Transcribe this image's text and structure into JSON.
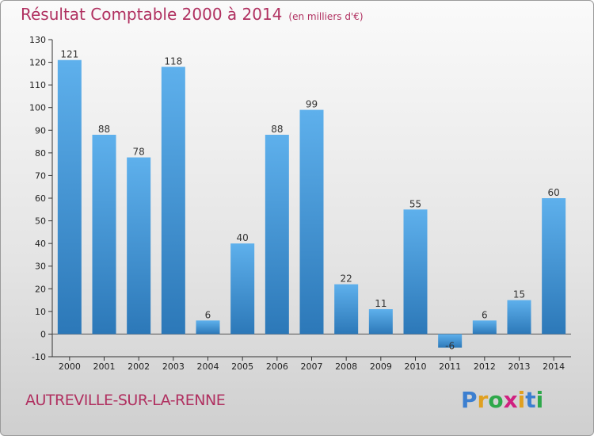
{
  "header": {
    "title": "Résultat Comptable 2000 à 2014",
    "subtitle": "(en milliers d'€)"
  },
  "commune": "AUTREVILLE-SUR-LA-RENNE",
  "logo": {
    "letters": [
      "P",
      "r",
      "o",
      "x",
      "i",
      "t",
      "i"
    ],
    "colors": [
      "#3c7fd0",
      "#e0a020",
      "#2ea84a",
      "#d02080",
      "#e0a020",
      "#3c7fd0",
      "#2ea84a"
    ]
  },
  "chart_data": {
    "type": "bar",
    "title": "Résultat Comptable 2000 à 2014",
    "ylabel": "en milliers d'€",
    "categories": [
      "2000",
      "2001",
      "2002",
      "2003",
      "2004",
      "2005",
      "2006",
      "2007",
      "2008",
      "2009",
      "2010",
      "2011",
      "2012",
      "2013",
      "2014"
    ],
    "values": [
      121,
      88,
      78,
      118,
      6,
      40,
      88,
      99,
      22,
      11,
      55,
      -6,
      6,
      15,
      60
    ],
    "ylim": [
      -10,
      130
    ],
    "yticks": [
      -10,
      0,
      10,
      20,
      30,
      40,
      50,
      60,
      70,
      80,
      90,
      100,
      110,
      120,
      130
    ],
    "grid": false,
    "bar_color": "#3d8fd6"
  }
}
